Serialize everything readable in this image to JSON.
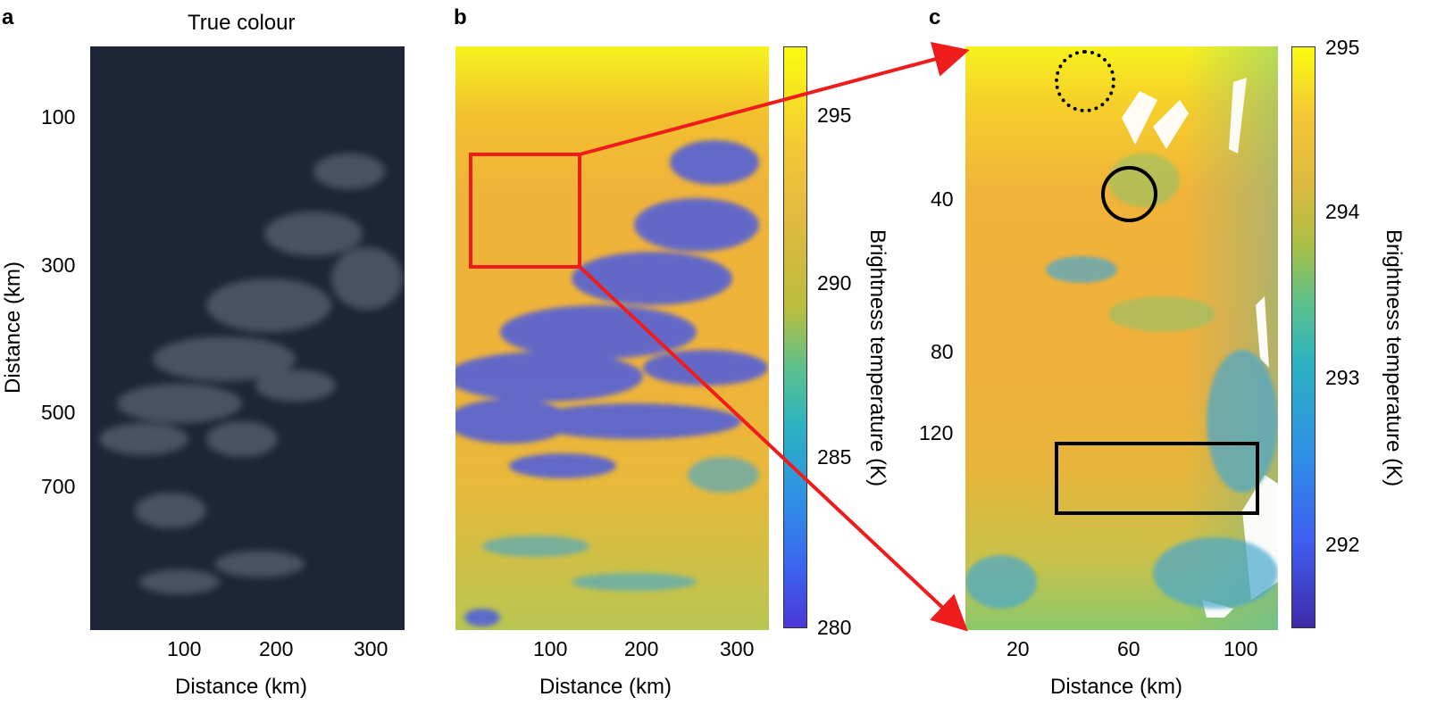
{
  "panels": {
    "a": {
      "letter": "a",
      "title": "True colour",
      "yticks": [
        "100",
        "300",
        "500",
        "700"
      ],
      "xticks": [
        "100",
        "200",
        "300"
      ],
      "ylabel": "Distance (km)",
      "xlabel": "Distance (km)"
    },
    "b": {
      "letter": "b",
      "xticks": [
        "100",
        "200",
        "300"
      ],
      "xlabel": "Distance (km)",
      "cbar_ticks": [
        "295",
        "290",
        "285",
        "280"
      ],
      "cbar_label": "Brightness temperature (K)"
    },
    "c": {
      "letter": "c",
      "yticks": [
        "40",
        "80",
        "120"
      ],
      "xticks": [
        "20",
        "60",
        "100"
      ],
      "xlabel": "Distance (km)",
      "cbar_ticks": [
        "295",
        "294",
        "293",
        "292"
      ],
      "cbar_label": "Brightness temperature (K)"
    }
  },
  "colors": {
    "highlight_box": "#ee1c1c",
    "arrow": "#ee1c1c",
    "marker": "#000000",
    "true_colour_bg": "#1d2537",
    "warm": "#f2b33c",
    "hot": "#f7f21d",
    "cold": "#4b5be0"
  }
}
